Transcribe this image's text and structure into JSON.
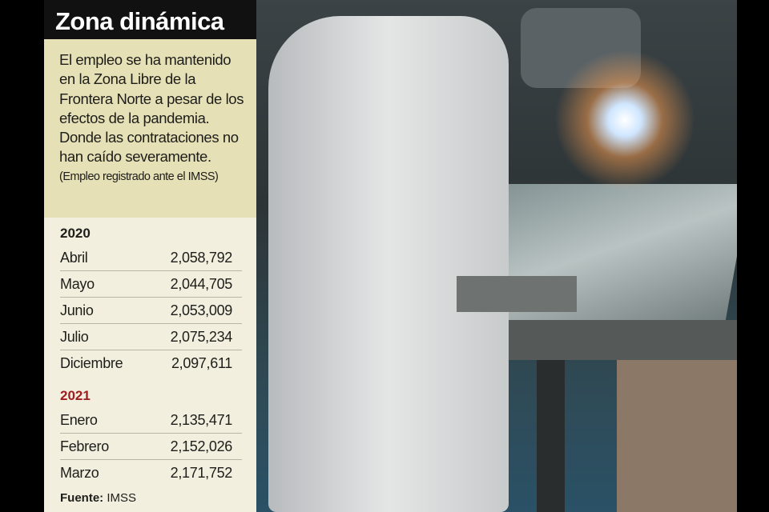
{
  "title": "Zona dinámica",
  "intro": "El empleo se ha mantenido en la Zona Libre de la Frontera Norte a pesar de los efectos de la pandemia. Donde las contrataciones no han caído severamente.",
  "note": "(Empleo registrado ante el IMSS)",
  "sections": [
    {
      "year": "2020",
      "rows": [
        {
          "month": "Abril",
          "value": "2,058,792"
        },
        {
          "month": "Mayo",
          "value": "2,044,705"
        },
        {
          "month": "Junio",
          "value": "2,053,009"
        },
        {
          "month": "Julio",
          "value": "2,075,234"
        },
        {
          "month": "Diciembre",
          "value": "2,097,611"
        }
      ]
    },
    {
      "year": "2021",
      "rows": [
        {
          "month": "Enero",
          "value": "2,135,471"
        },
        {
          "month": "Febrero",
          "value": "2,152,026"
        },
        {
          "month": "Marzo",
          "value": "2,171,752"
        }
      ]
    }
  ],
  "source_label": "Fuente:",
  "source": "IMSS",
  "colors": {
    "title_bg": "#111111",
    "intro_bg": "#e6e0b6",
    "table_bg": "#f3efdf",
    "year_2021": "#a01d21"
  }
}
